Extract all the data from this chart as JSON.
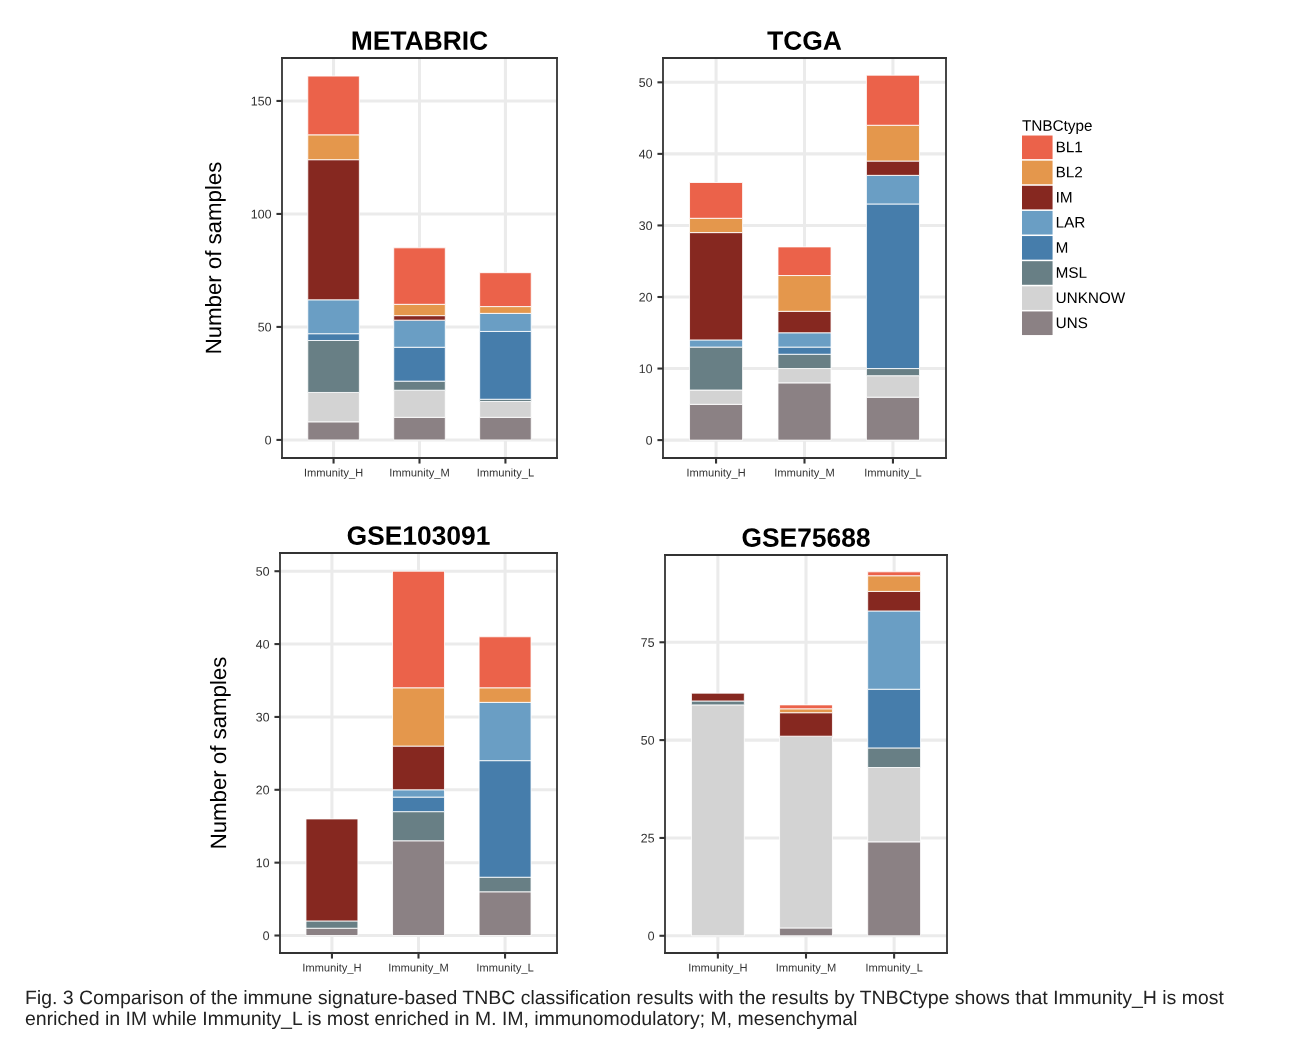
{
  "chart_data": [
    {
      "type": "bar",
      "stacked": true,
      "title": "METABRIC",
      "ylabel": "Number of samples",
      "categories": [
        "Immunity_H",
        "Immunity_M",
        "Immunity_L"
      ],
      "ylim": [
        -8,
        169
      ],
      "yticks": [
        0,
        50,
        100,
        150
      ],
      "grid": true,
      "series": [
        {
          "color": "#8b8184",
          "values": [
            8,
            10,
            10
          ]
        },
        {
          "color": "#d3d3d3",
          "values": [
            13,
            12,
            7
          ]
        },
        {
          "color": "#687f85",
          "values": [
            23,
            4,
            1
          ]
        },
        {
          "color": "#467dab",
          "values": [
            3,
            15,
            30
          ]
        },
        {
          "color": "#6a9ec4",
          "values": [
            15,
            12,
            8
          ]
        },
        {
          "color": "#862820",
          "values": [
            62,
            2,
            0
          ]
        },
        {
          "color": "#e4974c",
          "values": [
            11,
            5,
            3
          ]
        },
        {
          "color": "#eb624a",
          "values": [
            26,
            25,
            15
          ]
        }
      ]
    },
    {
      "type": "bar",
      "stacked": true,
      "title": "TCGA",
      "categories": [
        "Immunity_H",
        "Immunity_M",
        "Immunity_L"
      ],
      "ylim": [
        -2.5,
        53.4
      ],
      "yticks": [
        0,
        10,
        20,
        30,
        40,
        50
      ],
      "grid": true,
      "legend": "right",
      "legend_title": "TNBCtype",
      "series": [
        {
          "name": "UNS",
          "color": "#8b8184",
          "values": [
            5,
            8,
            6
          ]
        },
        {
          "name": "UNKNOW",
          "color": "#d3d3d3",
          "values": [
            2,
            2,
            3
          ]
        },
        {
          "name": "MSL",
          "color": "#687f85",
          "values": [
            6,
            2,
            1
          ]
        },
        {
          "name": "M",
          "color": "#467dab",
          "values": [
            0,
            1,
            23
          ]
        },
        {
          "name": "LAR",
          "color": "#6a9ec4",
          "values": [
            1,
            2,
            4
          ]
        },
        {
          "name": "IM",
          "color": "#862820",
          "values": [
            15,
            3,
            2
          ]
        },
        {
          "name": "BL2",
          "color": "#e4974c",
          "values": [
            2,
            5,
            5
          ]
        },
        {
          "name": "BL1",
          "color": "#eb624a",
          "values": [
            5,
            4,
            7
          ]
        }
      ]
    },
    {
      "type": "bar",
      "stacked": true,
      "title": "GSE103091",
      "ylabel": "Number of samples",
      "categories": [
        "Immunity_H",
        "Immunity_M",
        "Immunity_L"
      ],
      "ylim": [
        -2.4,
        52.5
      ],
      "yticks": [
        0,
        10,
        20,
        30,
        40,
        50
      ],
      "grid": true,
      "series": [
        {
          "color": "#8b8184",
          "values": [
            1,
            13,
            6
          ]
        },
        {
          "color": "#d3d3d3",
          "values": [
            0,
            0,
            0
          ]
        },
        {
          "color": "#687f85",
          "values": [
            1,
            4,
            2
          ]
        },
        {
          "color": "#467dab",
          "values": [
            0,
            2,
            16
          ]
        },
        {
          "color": "#6a9ec4",
          "values": [
            0,
            1,
            8
          ]
        },
        {
          "color": "#862820",
          "values": [
            14,
            6,
            0
          ]
        },
        {
          "color": "#e4974c",
          "values": [
            0,
            8,
            2
          ]
        },
        {
          "color": "#eb624a",
          "values": [
            0,
            16,
            7
          ]
        }
      ]
    },
    {
      "type": "bar",
      "stacked": true,
      "title": "GSE75688",
      "categories": [
        "Immunity_H",
        "Immunity_M",
        "Immunity_L"
      ],
      "ylim": [
        -4.4,
        97.3
      ],
      "yticks": [
        0,
        25,
        50,
        75
      ],
      "grid": true,
      "annotations": [
        "Fig. 3 Comparison of the immune signature-based TNBC classification results with the results by TNBCtype shows that Immunity_H is most enriched in IM while Immunity_L is most enriched in M. IM, immunomodulatory; M, mesenchymal"
      ],
      "series": [
        {
          "color": "#8b8184",
          "values": [
            0,
            2,
            24
          ]
        },
        {
          "color": "#d3d3d3",
          "values": [
            59,
            49,
            19
          ]
        },
        {
          "color": "#687f85",
          "values": [
            1,
            0,
            5
          ]
        },
        {
          "color": "#467dab",
          "values": [
            0,
            0,
            15
          ]
        },
        {
          "color": "#6a9ec4",
          "values": [
            0,
            0,
            20
          ]
        },
        {
          "color": "#862820",
          "values": [
            2,
            6,
            5
          ]
        },
        {
          "color": "#e4974c",
          "values": [
            0,
            1,
            4
          ]
        },
        {
          "color": "#eb624a",
          "values": [
            0,
            1,
            1
          ]
        }
      ]
    }
  ]
}
